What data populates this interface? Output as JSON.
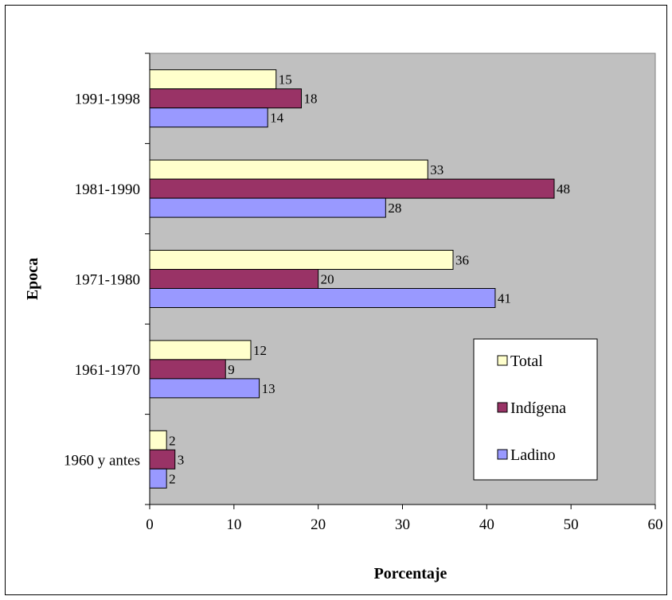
{
  "chart_data": {
    "type": "bar",
    "orientation": "horizontal",
    "title": "",
    "xlabel": "Porcentaje",
    "ylabel": "Epoca",
    "xlim": [
      0,
      60
    ],
    "x_ticks": [
      "0",
      "10",
      "20",
      "30",
      "40",
      "50",
      "60"
    ],
    "categories": [
      "1991-1998",
      "1981-1990",
      "1971-1980",
      "1961-1970",
      "1960 y antes"
    ],
    "series": [
      {
        "name": "Total",
        "color": "#FFFFCC",
        "values": [
          15,
          33,
          36,
          12,
          2
        ]
      },
      {
        "name": "Indígena",
        "color": "#993366",
        "values": [
          18,
          48,
          20,
          9,
          3
        ]
      },
      {
        "name": "Ladino",
        "color": "#9999FF",
        "values": [
          14,
          28,
          41,
          13,
          2
        ]
      }
    ],
    "legend_position": "bottom-right",
    "plot_background": "#C0C0C0",
    "grid": false
  }
}
